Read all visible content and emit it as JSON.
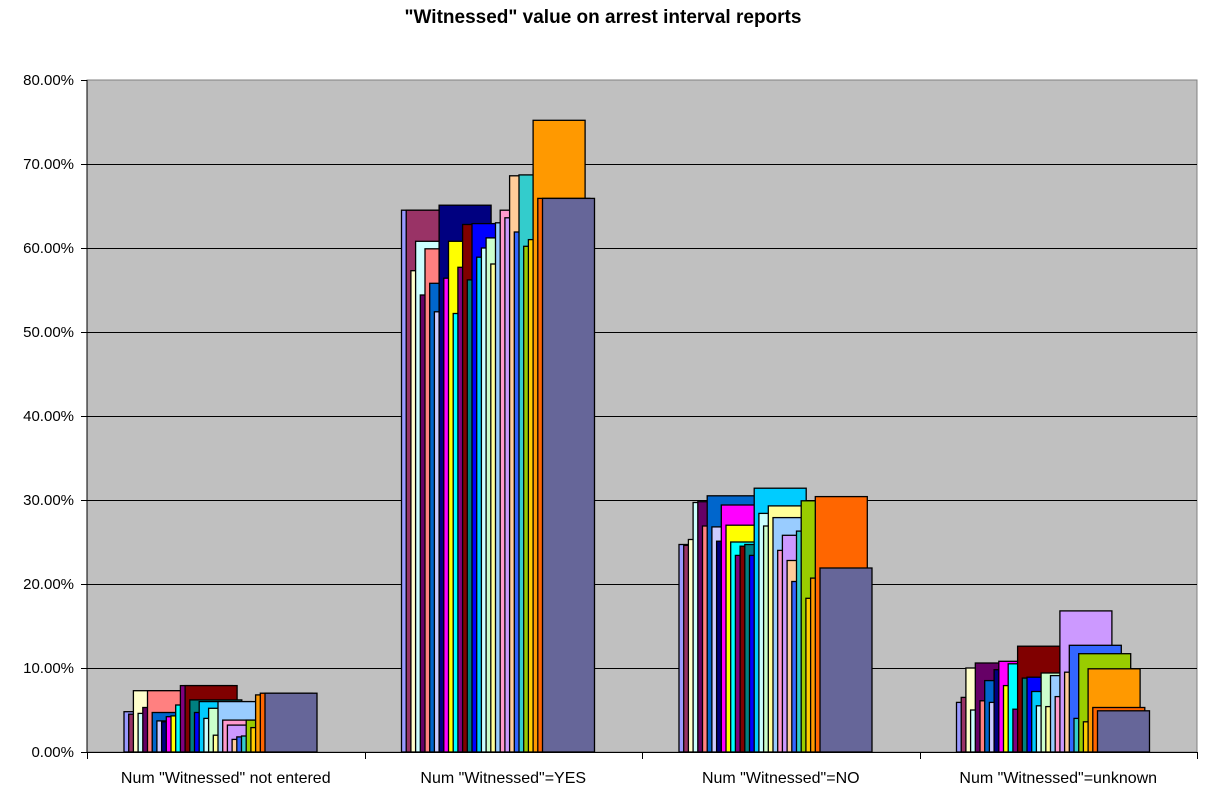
{
  "chart_data": {
    "type": "bar",
    "title": "\"Witnessed\" value on arrest interval reports",
    "xlabel": "",
    "ylabel": "",
    "ylim": [
      0,
      80
    ],
    "y_ticks": [
      "0.00%",
      "10.00%",
      "20.00%",
      "30.00%",
      "40.00%",
      "50.00%",
      "60.00%",
      "70.00%",
      "80.00%"
    ],
    "y_tick_values": [
      0,
      10,
      20,
      30,
      40,
      50,
      60,
      70,
      80
    ],
    "grid": true,
    "legend": "none",
    "categories": [
      "Num \"Witnessed\" not entered",
      "Num \"Witnessed\"=YES",
      "Num \"Witnessed\"=NO",
      "Num \"Witnessed\"=unknown"
    ],
    "series": [
      {
        "values": [
          4.8,
          64.5,
          24.7,
          5.9
        ],
        "color": "#9999ff"
      },
      {
        "values": [
          4.5,
          64.5,
          24.6,
          6.5
        ],
        "color": "#993366"
      },
      {
        "values": [
          7.3,
          57.3,
          25.3,
          10.0
        ],
        "color": "#ffffcc"
      },
      {
        "values": [
          4.6,
          60.8,
          29.7,
          5.0
        ],
        "color": "#ccffff"
      },
      {
        "values": [
          5.3,
          54.4,
          29.8,
          10.6
        ],
        "color": "#660066"
      },
      {
        "values": [
          7.3,
          59.9,
          26.9,
          6.1
        ],
        "color": "#ff8080"
      },
      {
        "values": [
          4.7,
          55.8,
          30.5,
          8.5
        ],
        "color": "#0066cc"
      },
      {
        "values": [
          3.7,
          52.4,
          26.8,
          5.9
        ],
        "color": "#ccccff"
      },
      {
        "values": [
          3.6,
          65.1,
          25.1,
          9.8
        ],
        "color": "#000080"
      },
      {
        "values": [
          4.2,
          56.4,
          29.4,
          10.8
        ],
        "color": "#ff00ff"
      },
      {
        "values": [
          4.3,
          60.8,
          27.0,
          7.9
        ],
        "color": "#ffff00"
      },
      {
        "values": [
          5.6,
          52.2,
          25.0,
          10.5
        ],
        "color": "#00ffff"
      },
      {
        "values": [
          7.9,
          57.7,
          23.4,
          5.1
        ],
        "color": "#800080"
      },
      {
        "values": [
          7.9,
          62.8,
          24.5,
          12.6
        ],
        "color": "#800000"
      },
      {
        "values": [
          6.2,
          56.2,
          24.7,
          8.8
        ],
        "color": "#008080"
      },
      {
        "values": [
          4.7,
          62.9,
          23.4,
          8.9
        ],
        "color": "#0000ff"
      },
      {
        "values": [
          6.0,
          58.9,
          31.4,
          7.2
        ],
        "color": "#00ccff"
      },
      {
        "values": [
          4.0,
          60.0,
          28.4,
          5.5
        ],
        "color": "#ccffff"
      },
      {
        "values": [
          5.2,
          61.2,
          26.9,
          9.4
        ],
        "color": "#ccffcc"
      },
      {
        "values": [
          2.0,
          58.1,
          29.3,
          5.4
        ],
        "color": "#ffff99"
      },
      {
        "values": [
          6.0,
          63.0,
          27.9,
          9.1
        ],
        "color": "#99ccff"
      },
      {
        "values": [
          3.8,
          64.5,
          24.0,
          6.6
        ],
        "color": "#ff99cc"
      },
      {
        "values": [
          3.2,
          63.6,
          25.8,
          16.8
        ],
        "color": "#cc99ff"
      },
      {
        "values": [
          1.5,
          68.6,
          22.8,
          9.5
        ],
        "color": "#ffcc99"
      },
      {
        "values": [
          1.8,
          61.9,
          20.3,
          12.7
        ],
        "color": "#3366ff"
      },
      {
        "values": [
          1.9,
          68.7,
          26.3,
          4.0
        ],
        "color": "#33cccc"
      },
      {
        "values": [
          3.8,
          60.2,
          29.9,
          11.7
        ],
        "color": "#99cc00"
      },
      {
        "values": [
          2.9,
          61.0,
          18.3,
          3.6
        ],
        "color": "#ffcc00"
      },
      {
        "values": [
          6.8,
          75.2,
          20.7,
          9.9
        ],
        "color": "#ff9900"
      },
      {
        "values": [
          7.0,
          65.9,
          30.4,
          5.3
        ],
        "color": "#ff6600"
      },
      {
        "values": [
          7.0,
          65.9,
          21.9,
          4.9
        ],
        "color": "#666699"
      }
    ]
  }
}
